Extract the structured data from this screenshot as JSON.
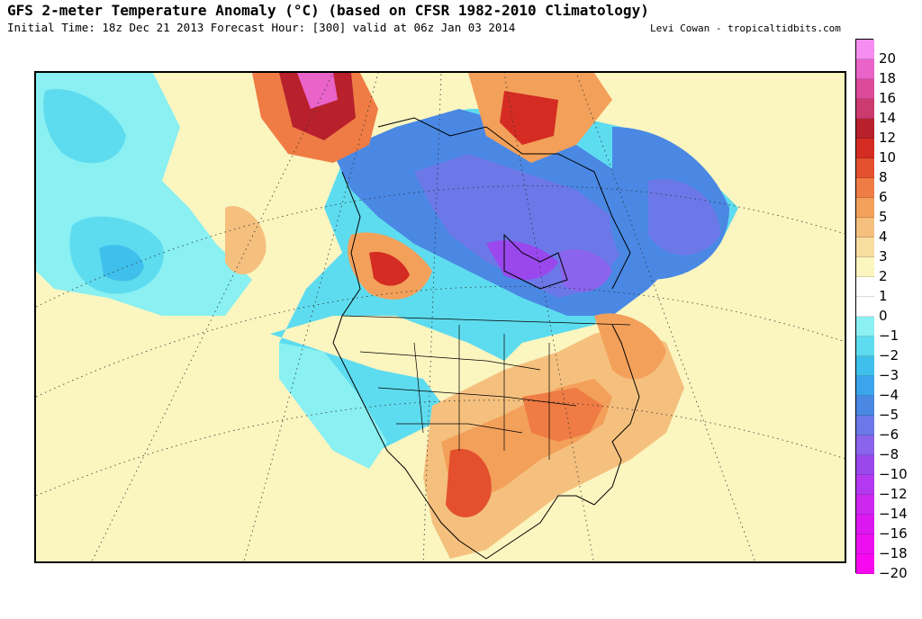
{
  "header": {
    "title": "GFS 2-meter Temperature Anomaly (°C) (based on CFSR 1982-2010 Climatology)",
    "subtitle": "Initial Time: 18z Dec 21 2013 Forecast Hour: [300] valid at 06z Jan 03 2014",
    "credit": "Levi Cowan - tropicaltidbits.com"
  },
  "map": {
    "region": "North America",
    "variable": "2-meter temperature anomaly",
    "units": "°C"
  },
  "colorbar": {
    "labels": [
      "20",
      "18",
      "16",
      "14",
      "12",
      "10",
      "8",
      "6",
      "5",
      "4",
      "3",
      "2",
      "1",
      "0",
      "−1",
      "−2",
      "−3",
      "−4",
      "−5",
      "−6",
      "−8",
      "−10",
      "−12",
      "−14",
      "−16",
      "−18",
      "−20"
    ],
    "colors": [
      "#f58ef0",
      "#ea63c9",
      "#dc4a9a",
      "#cc3a6e",
      "#b8202c",
      "#d42c22",
      "#e4502e",
      "#ef7c44",
      "#f3a05a",
      "#f5c07e",
      "#f8dda0",
      "#fbf5c0",
      "#ffffff",
      "#ffffff",
      "#8af0f2",
      "#5edcef",
      "#3fc0ec",
      "#3ca4ea",
      "#4a88e4",
      "#6c78e8",
      "#8a64ec",
      "#9a48ee",
      "#b438f0",
      "#cc28f0",
      "#dc18f0",
      "#ec10f0",
      "#f808f0"
    ]
  }
}
